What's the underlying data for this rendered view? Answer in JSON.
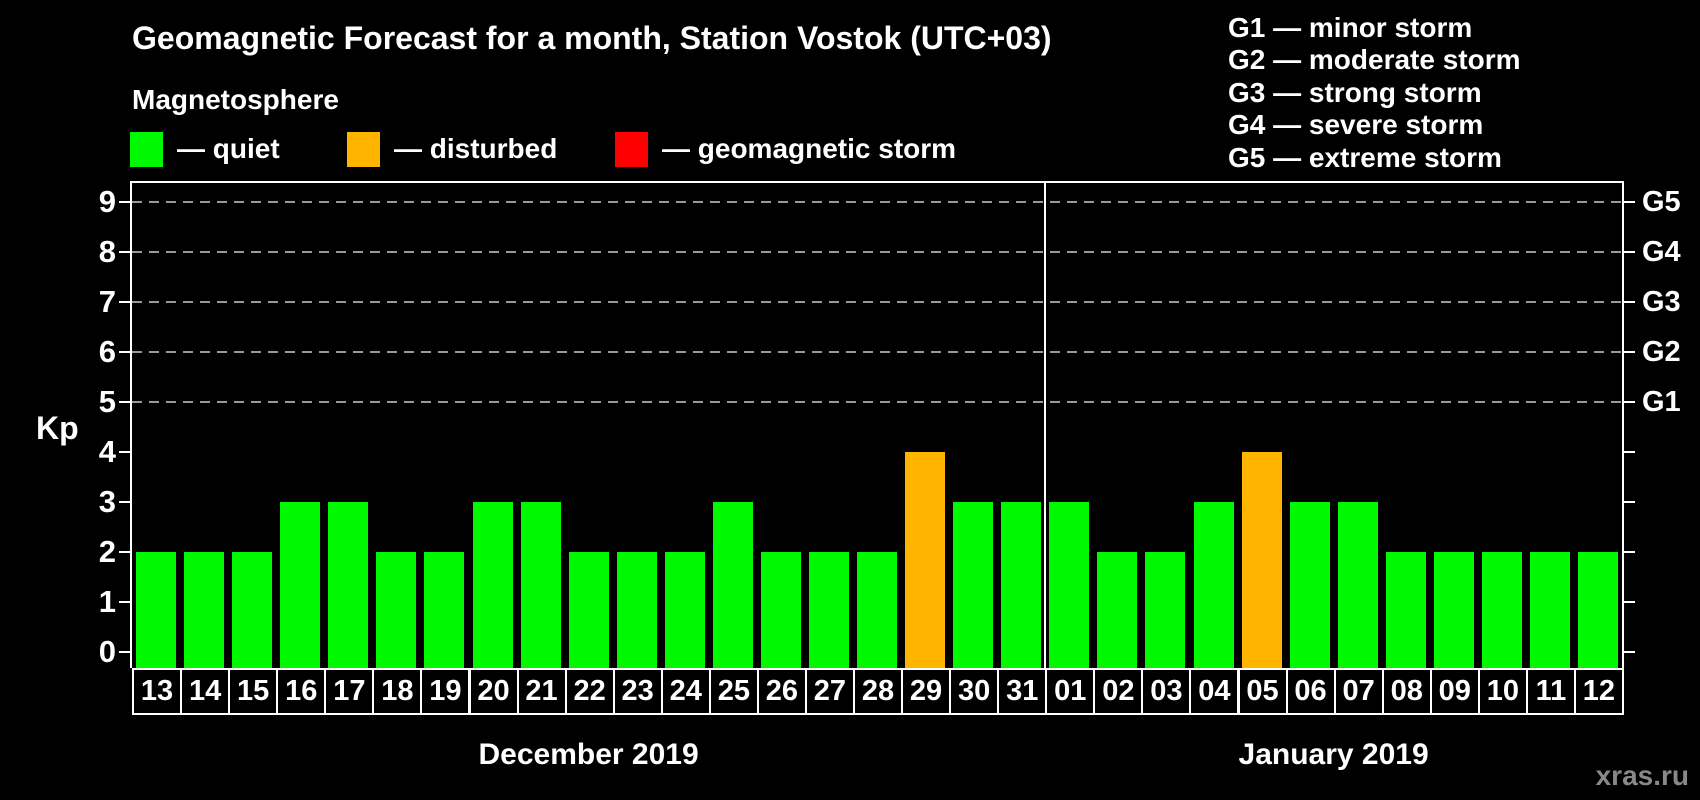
{
  "title": "Geomagnetic Forecast for a month, Station Vostok (UTC+03)",
  "subtitle": "Magnetosphere",
  "legend": {
    "dash": "—",
    "colors": {
      "quiet": "#00f800",
      "disturbed": "#ffb400",
      "storm": "#ff0000"
    },
    "items": [
      {
        "status": "quiet",
        "label": "quiet"
      },
      {
        "status": "disturbed",
        "label": "disturbed"
      },
      {
        "status": "storm",
        "label": "geomagnetic storm"
      }
    ]
  },
  "g_scale_legend": [
    {
      "code": "G1",
      "desc": "minor storm"
    },
    {
      "code": "G2",
      "desc": "moderate storm"
    },
    {
      "code": "G3",
      "desc": "strong storm"
    },
    {
      "code": "G4",
      "desc": "severe storm"
    },
    {
      "code": "G5",
      "desc": "extreme storm"
    }
  ],
  "watermark": "xras.ru",
  "chart_data": {
    "type": "bar",
    "ylabel": "Kp",
    "ylim": [
      0,
      9
    ],
    "yticks": [
      0,
      1,
      2,
      3,
      4,
      5,
      6,
      7,
      8,
      9
    ],
    "right_axis": [
      {
        "label": "G1",
        "kp": 5
      },
      {
        "label": "G2",
        "kp": 6
      },
      {
        "label": "G3",
        "kp": 7
      },
      {
        "label": "G4",
        "kp": 8
      },
      {
        "label": "G5",
        "kp": 9
      }
    ],
    "dashed_gridlines_kp": [
      5,
      6,
      7,
      8,
      9
    ],
    "groups": [
      {
        "label": "December 2019",
        "days": [
          "13",
          "14",
          "15",
          "16",
          "17",
          "18",
          "19",
          "20",
          "21",
          "22",
          "23",
          "24",
          "25",
          "26",
          "27",
          "28",
          "29",
          "30",
          "31"
        ],
        "values": [
          2,
          2,
          2,
          3,
          3,
          2,
          2,
          3,
          3,
          2,
          2,
          2,
          3,
          2,
          2,
          2,
          4,
          3,
          3
        ],
        "status": [
          "quiet",
          "quiet",
          "quiet",
          "quiet",
          "quiet",
          "quiet",
          "quiet",
          "quiet",
          "quiet",
          "quiet",
          "quiet",
          "quiet",
          "quiet",
          "quiet",
          "quiet",
          "quiet",
          "disturbed",
          "quiet",
          "quiet"
        ]
      },
      {
        "label": "January 2019",
        "days": [
          "01",
          "02",
          "03",
          "04",
          "05",
          "06",
          "07",
          "08",
          "09",
          "10",
          "11",
          "12"
        ],
        "values": [
          3,
          2,
          2,
          3,
          4,
          3,
          3,
          2,
          2,
          2,
          2,
          2
        ],
        "status": [
          "quiet",
          "quiet",
          "quiet",
          "quiet",
          "disturbed",
          "quiet",
          "quiet",
          "quiet",
          "quiet",
          "quiet",
          "quiet",
          "quiet"
        ]
      }
    ]
  }
}
